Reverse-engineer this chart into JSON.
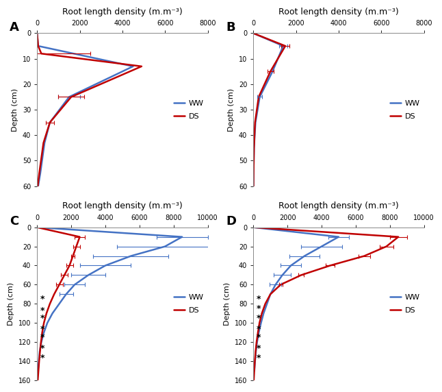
{
  "panels": {
    "A": {
      "label": "A",
      "title": "Root length density (m.m⁻³)",
      "xlim": [
        0,
        8000
      ],
      "xticks": [
        0,
        2000,
        4000,
        6000,
        8000
      ],
      "ylim": [
        60,
        0
      ],
      "yticks": [
        0,
        10,
        20,
        30,
        40,
        50,
        60
      ],
      "ylabel": "Depth (cm)",
      "ww": {
        "depth": [
          0,
          5,
          13,
          25,
          35,
          43,
          55,
          60
        ],
        "rld": [
          0,
          50,
          4500,
          1500,
          600,
          350,
          150,
          50
        ],
        "xerr": [
          0,
          0,
          0,
          500,
          0,
          0,
          0,
          0
        ]
      },
      "ds": {
        "depth": [
          0,
          5,
          8,
          13,
          25,
          35,
          43,
          55,
          60
        ],
        "rld": [
          0,
          50,
          200,
          4900,
          1600,
          600,
          300,
          100,
          30
        ],
        "xerr": [
          0,
          0,
          2300,
          0,
          600,
          200,
          0,
          0,
          0
        ]
      },
      "star_depths": []
    },
    "B": {
      "label": "B",
      "title": "Root length density (m.m⁻³)",
      "xlim": [
        0,
        8000
      ],
      "xticks": [
        0,
        2000,
        4000,
        6000,
        8000
      ],
      "ylim": [
        60,
        0
      ],
      "yticks": [
        0,
        10,
        20,
        30,
        40,
        50,
        60
      ],
      "ylabel": "Depth (cm)",
      "ww": {
        "depth": [
          0,
          5,
          15,
          25,
          35,
          45,
          55,
          60
        ],
        "rld": [
          0,
          1400,
          900,
          300,
          100,
          30,
          10,
          5
        ],
        "xerr": [
          0,
          200,
          0,
          100,
          0,
          0,
          0,
          0
        ]
      },
      "ds": {
        "depth": [
          0,
          5,
          15,
          25,
          35,
          45,
          55,
          60
        ],
        "rld": [
          0,
          1500,
          800,
          250,
          80,
          30,
          10,
          5
        ],
        "xerr": [
          0,
          200,
          150,
          0,
          0,
          0,
          0,
          0
        ]
      },
      "star_depths": []
    },
    "C": {
      "label": "C",
      "title": "Root length density (m.m⁻³)",
      "xlim": [
        0,
        10000
      ],
      "xticks": [
        0,
        2000,
        4000,
        6000,
        8000,
        10000
      ],
      "ylim": [
        160,
        0
      ],
      "yticks": [
        0,
        20,
        40,
        60,
        80,
        100,
        120,
        140,
        160
      ],
      "ylabel": "Depth (cm)",
      "ww": {
        "depth": [
          0,
          10,
          20,
          30,
          40,
          50,
          60,
          70,
          80,
          90,
          100,
          110,
          120,
          130,
          140,
          150
        ],
        "rld": [
          0,
          8500,
          7500,
          5500,
          4000,
          3000,
          2200,
          1700,
          1300,
          900,
          600,
          400,
          250,
          150,
          100,
          50
        ],
        "xerr": [
          0,
          1500,
          2800,
          2200,
          1500,
          1000,
          600,
          400,
          0,
          0,
          0,
          0,
          0,
          0,
          0,
          0
        ]
      },
      "ds": {
        "depth": [
          0,
          10,
          20,
          30,
          40,
          50,
          60,
          70,
          80,
          90,
          100,
          110,
          120,
          130,
          140,
          150,
          160
        ],
        "rld": [
          0,
          2500,
          2300,
          2100,
          1900,
          1600,
          1300,
          1000,
          750,
          550,
          400,
          300,
          230,
          170,
          120,
          80,
          40
        ],
        "xerr": [
          0,
          300,
          200,
          100,
          200,
          200,
          200,
          0,
          0,
          0,
          0,
          0,
          0,
          0,
          0,
          0,
          0
        ]
      },
      "star_depths": [
        75,
        87,
        95,
        107,
        115,
        127,
        137
      ]
    },
    "D": {
      "label": "D",
      "title": "Root length density (m.m⁻³)",
      "xlim": [
        0,
        10000
      ],
      "xticks": [
        0,
        2000,
        4000,
        6000,
        8000,
        10000
      ],
      "ylim": [
        160,
        0
      ],
      "yticks": [
        0,
        20,
        40,
        60,
        80,
        100,
        120,
        140,
        160
      ],
      "ylabel": "Depth (cm)",
      "ww": {
        "depth": [
          0,
          10,
          20,
          30,
          40,
          50,
          60,
          70,
          80,
          90,
          100,
          110,
          120,
          130,
          140,
          150
        ],
        "rld": [
          0,
          5000,
          4000,
          3000,
          2200,
          1700,
          1300,
          1000,
          800,
          600,
          450,
          320,
          220,
          150,
          100,
          60
        ],
        "xerr": [
          0,
          600,
          1200,
          900,
          600,
          500,
          350,
          0,
          0,
          0,
          0,
          0,
          0,
          0,
          0,
          0
        ]
      },
      "ds": {
        "depth": [
          0,
          10,
          20,
          30,
          40,
          50,
          60,
          70,
          80,
          90,
          100,
          110,
          120,
          130,
          140,
          150,
          160
        ],
        "rld": [
          0,
          8500,
          7800,
          6500,
          4500,
          2800,
          1600,
          1000,
          700,
          500,
          360,
          270,
          190,
          130,
          90,
          55,
          25
        ],
        "xerr": [
          0,
          500,
          400,
          350,
          250,
          150,
          100,
          0,
          0,
          0,
          0,
          0,
          0,
          0,
          0,
          0,
          0
        ]
      },
      "star_depths": [
        75,
        85,
        95,
        107,
        115,
        127,
        137
      ]
    }
  },
  "ww_color": "#4472C4",
  "ds_color": "#C00000",
  "linewidth": 1.8,
  "capsize": 2
}
